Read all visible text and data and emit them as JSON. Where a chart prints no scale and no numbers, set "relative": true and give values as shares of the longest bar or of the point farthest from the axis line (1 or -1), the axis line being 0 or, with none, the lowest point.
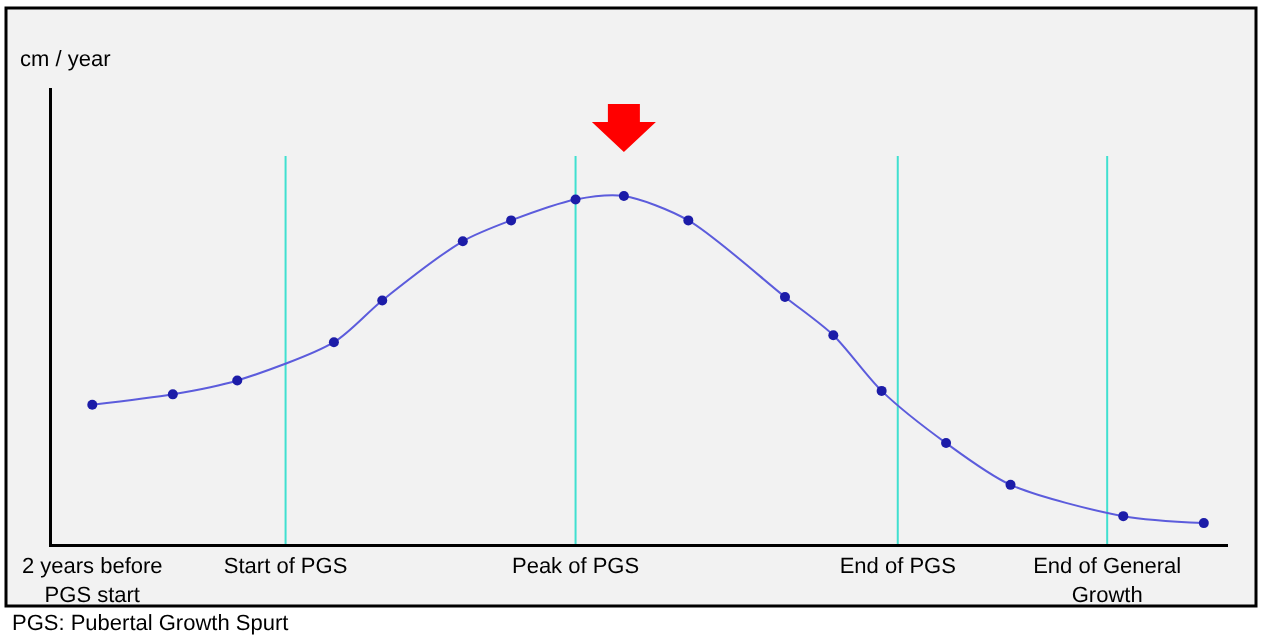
{
  "chart_data": {
    "type": "line",
    "relative": true,
    "tick_labels": "x",
    "marker": "circle",
    "line_style": "solid",
    "legend": false,
    "categories": [
      null,
      null,
      "2 years before\nPGS start",
      null,
      null,
      null,
      null,
      null,
      null,
      null,
      null,
      null,
      null,
      null,
      "Start of PGS",
      null,
      null,
      null,
      null,
      null,
      null,
      null,
      null,
      null,
      null,
      null,
      null,
      null,
      null,
      null,
      null,
      null,
      "Peak of PGS",
      null,
      null,
      null,
      null,
      null,
      null,
      null,
      null,
      null,
      null,
      null,
      null,
      null,
      null,
      null,
      null,
      null,
      null,
      null,
      "End of PGS",
      null,
      null,
      null,
      null,
      null,
      null,
      null,
      null,
      null,
      null,
      null,
      null,
      "End of General\nGrowth",
      null,
      null,
      null,
      null,
      null,
      null,
      null
    ],
    "series": [
      {
        "color": "#5c5cdc",
        "values": [
          null,
          null,
          0.4,
          null,
          null,
          null,
          null,
          0.43,
          null,
          null,
          null,
          0.47,
          null,
          null,
          null,
          null,
          null,
          0.58,
          null,
          null,
          0.7,
          null,
          null,
          null,
          null,
          0.87,
          null,
          null,
          0.93,
          null,
          null,
          null,
          0.99,
          null,
          null,
          1,
          null,
          null,
          null,
          0.93,
          null,
          null,
          null,
          null,
          null,
          0.71,
          null,
          null,
          0.6,
          null,
          null,
          0.44,
          null,
          null,
          null,
          0.29,
          null,
          null,
          null,
          0.17,
          null,
          null,
          null,
          null,
          null,
          null,
          0.08,
          null,
          null,
          null,
          null,
          0.06,
          null
        ]
      }
    ],
    "ref_lines": [
      {
        "axis": "x",
        "value": "Start of PGS",
        "color": "#40e0d0"
      },
      {
        "axis": "x",
        "value": "Peak of PGS",
        "color": "#40e0d0"
      },
      {
        "axis": "x",
        "value": "End of PGS",
        "color": "#40e0d0"
      },
      {
        "axis": "x",
        "value": "End of General\nGrowth",
        "color": "#40e0d0"
      }
    ],
    "annotations": [
      "cm / year",
      "PGS: Pubertal Growth Spurt"
    ]
  }
}
